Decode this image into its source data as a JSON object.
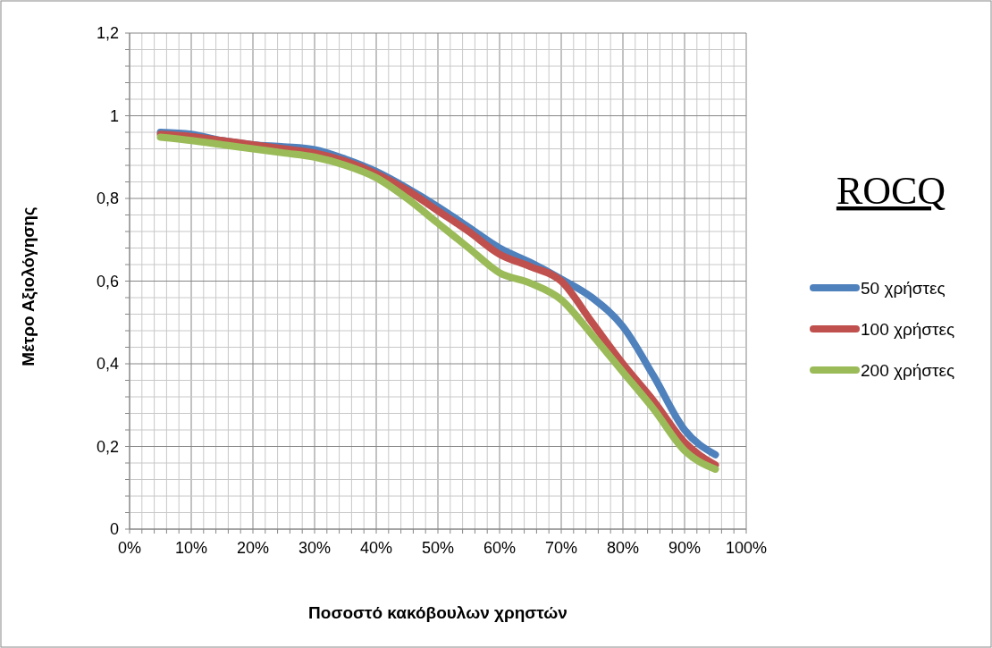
{
  "chart_data": {
    "type": "line",
    "title": "ROCQ",
    "xlabel": "Ποσοστό κακόβουλων χρηστών",
    "ylabel": "Μέτρο Αξιολόγησης",
    "x": [
      5,
      10,
      15,
      20,
      25,
      30,
      35,
      40,
      45,
      50,
      55,
      60,
      65,
      70,
      75,
      80,
      85,
      90,
      95
    ],
    "series": [
      {
        "name": "50 χρήστες",
        "color": "#4f81bd",
        "values": [
          0.96,
          0.955,
          0.94,
          0.93,
          0.925,
          0.918,
          0.895,
          0.865,
          0.825,
          0.78,
          0.73,
          0.68,
          0.645,
          0.605,
          0.56,
          0.49,
          0.37,
          0.24,
          0.18
        ]
      },
      {
        "name": "100 χρήστες",
        "color": "#c0504d",
        "values": [
          0.955,
          0.95,
          0.94,
          0.93,
          0.92,
          0.91,
          0.89,
          0.86,
          0.82,
          0.77,
          0.72,
          0.665,
          0.635,
          0.6,
          0.5,
          0.4,
          0.31,
          0.21,
          0.155
        ]
      },
      {
        "name": "200 χρήστες",
        "color": "#9bbb59",
        "values": [
          0.948,
          0.94,
          0.93,
          0.92,
          0.91,
          0.9,
          0.88,
          0.85,
          0.8,
          0.74,
          0.68,
          0.62,
          0.595,
          0.555,
          0.47,
          0.38,
          0.29,
          0.19,
          0.145
        ]
      }
    ],
    "xlim": [
      0,
      100
    ],
    "xticks": [
      {
        "value": 0,
        "label": "0%"
      },
      {
        "value": 2,
        "label": null
      },
      {
        "value": 4,
        "label": null
      },
      {
        "value": 6,
        "label": null
      },
      {
        "value": 8,
        "label": null
      },
      {
        "value": 10,
        "label": "10%"
      },
      {
        "value": 12,
        "label": null
      },
      {
        "value": 14,
        "label": null
      },
      {
        "value": 16,
        "label": null
      },
      {
        "value": 18,
        "label": null
      },
      {
        "value": 20,
        "label": "20%"
      },
      {
        "value": 22,
        "label": null
      },
      {
        "value": 24,
        "label": null
      },
      {
        "value": 26,
        "label": null
      },
      {
        "value": 28,
        "label": null
      },
      {
        "value": 30,
        "label": "30%"
      },
      {
        "value": 32,
        "label": null
      },
      {
        "value": 34,
        "label": null
      },
      {
        "value": 36,
        "label": null
      },
      {
        "value": 38,
        "label": null
      },
      {
        "value": 40,
        "label": "40%"
      },
      {
        "value": 42,
        "label": null
      },
      {
        "value": 44,
        "label": null
      },
      {
        "value": 46,
        "label": null
      },
      {
        "value": 48,
        "label": null
      },
      {
        "value": 50,
        "label": "50%"
      },
      {
        "value": 52,
        "label": null
      },
      {
        "value": 54,
        "label": null
      },
      {
        "value": 56,
        "label": null
      },
      {
        "value": 58,
        "label": null
      },
      {
        "value": 60,
        "label": "60%"
      },
      {
        "value": 62,
        "label": null
      },
      {
        "value": 64,
        "label": null
      },
      {
        "value": 66,
        "label": null
      },
      {
        "value": 68,
        "label": null
      },
      {
        "value": 70,
        "label": "70%"
      },
      {
        "value": 72,
        "label": null
      },
      {
        "value": 74,
        "label": null
      },
      {
        "value": 76,
        "label": null
      },
      {
        "value": 78,
        "label": null
      },
      {
        "value": 80,
        "label": "80%"
      },
      {
        "value": 82,
        "label": null
      },
      {
        "value": 84,
        "label": null
      },
      {
        "value": 86,
        "label": null
      },
      {
        "value": 88,
        "label": null
      },
      {
        "value": 90,
        "label": "90%"
      },
      {
        "value": 92,
        "label": null
      },
      {
        "value": 94,
        "label": null
      },
      {
        "value": 96,
        "label": null
      },
      {
        "value": 98,
        "label": null
      },
      {
        "value": 100,
        "label": "100%"
      }
    ],
    "ylim": [
      0,
      1.2
    ],
    "yticks": [
      {
        "value": 0,
        "label": "0"
      },
      {
        "value": 0.04,
        "label": null
      },
      {
        "value": 0.08,
        "label": null
      },
      {
        "value": 0.12,
        "label": null
      },
      {
        "value": 0.16,
        "label": null
      },
      {
        "value": 0.2,
        "label": "0,2"
      },
      {
        "value": 0.24,
        "label": null
      },
      {
        "value": 0.28,
        "label": null
      },
      {
        "value": 0.32,
        "label": null
      },
      {
        "value": 0.36,
        "label": null
      },
      {
        "value": 0.4,
        "label": "0,4"
      },
      {
        "value": 0.44,
        "label": null
      },
      {
        "value": 0.48,
        "label": null
      },
      {
        "value": 0.52,
        "label": null
      },
      {
        "value": 0.56,
        "label": null
      },
      {
        "value": 0.6,
        "label": "0,6"
      },
      {
        "value": 0.64,
        "label": null
      },
      {
        "value": 0.68,
        "label": null
      },
      {
        "value": 0.72,
        "label": null
      },
      {
        "value": 0.76,
        "label": null
      },
      {
        "value": 0.8,
        "label": "0,8"
      },
      {
        "value": 0.84,
        "label": null
      },
      {
        "value": 0.88,
        "label": null
      },
      {
        "value": 0.92,
        "label": null
      },
      {
        "value": 0.96,
        "label": null
      },
      {
        "value": 1,
        "label": "1"
      },
      {
        "value": 1.04,
        "label": null
      },
      {
        "value": 1.08,
        "label": null
      },
      {
        "value": 1.12,
        "label": null
      },
      {
        "value": 1.16,
        "label": null
      },
      {
        "value": 1.2,
        "label": "1,2"
      }
    ],
    "grid": true,
    "legend": "right",
    "marker": "none",
    "line_style": "solid"
  }
}
